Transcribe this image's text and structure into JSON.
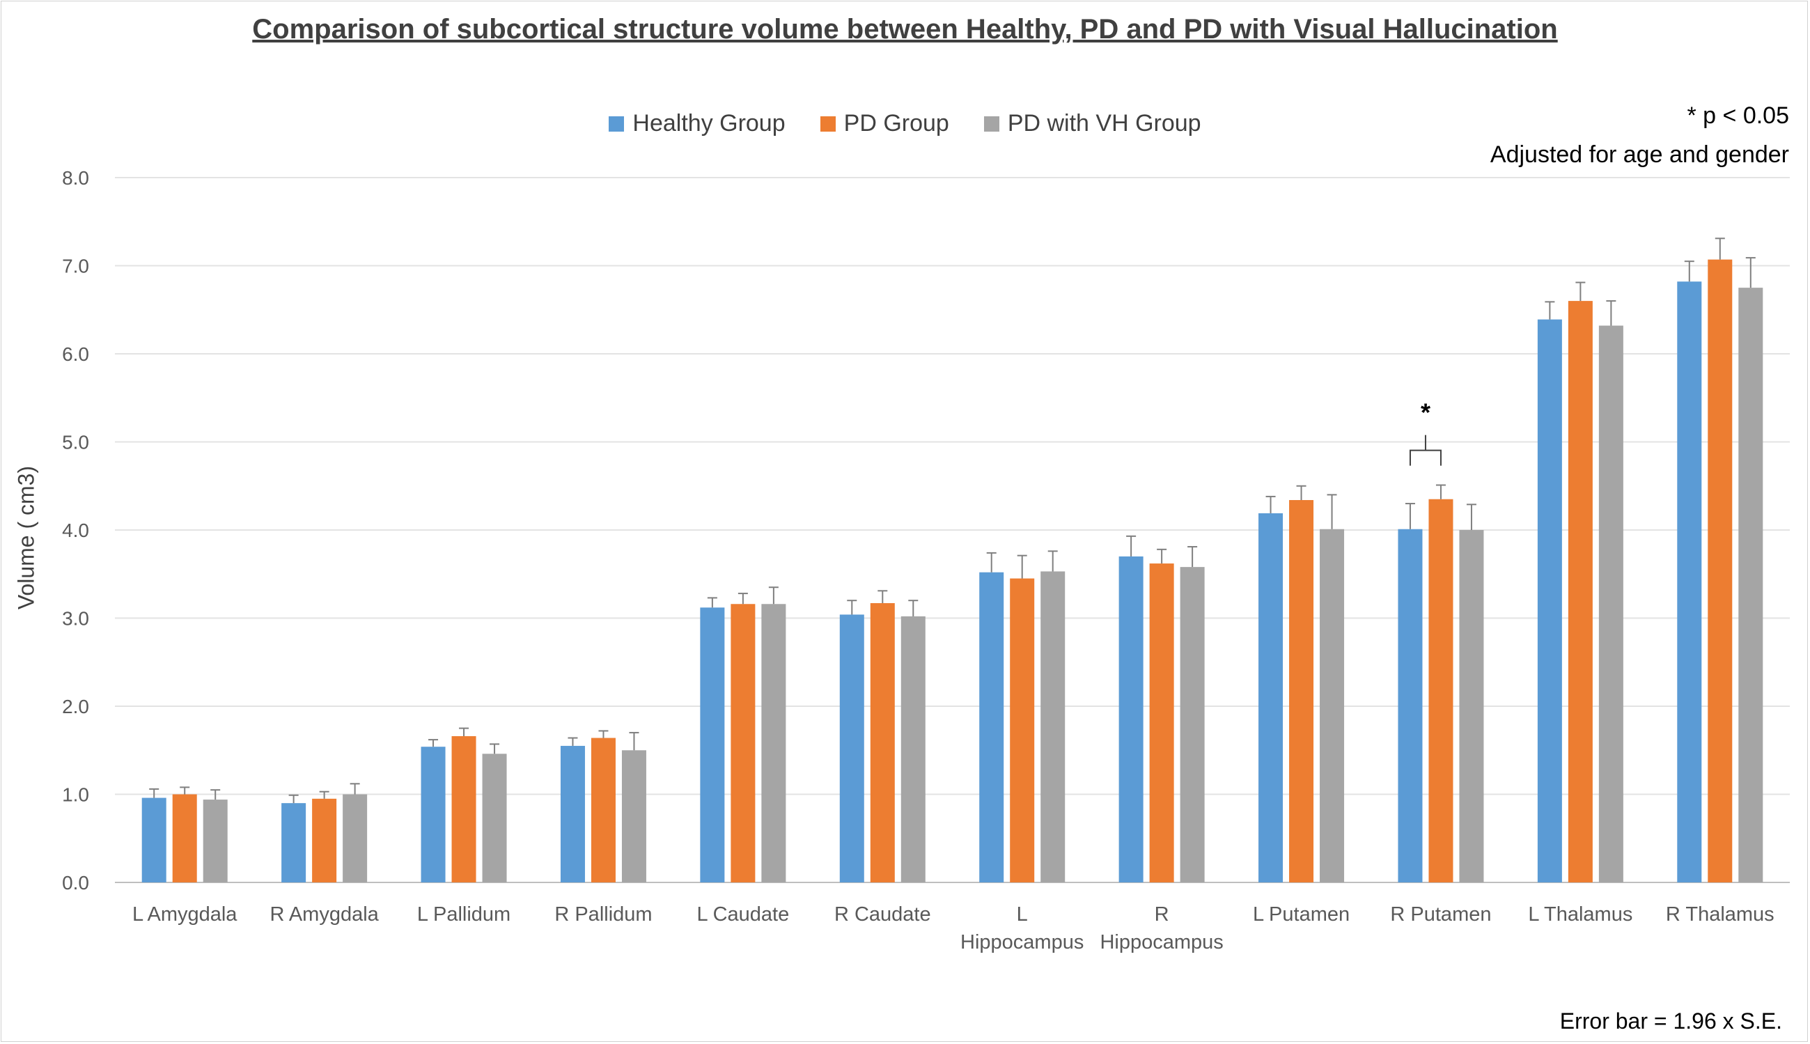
{
  "chart_data": {
    "type": "bar",
    "title": "Comparison of subcortical structure volume between Healthy, PD and PD with Visual Hallucination",
    "ylabel": "Volume ( cm3)",
    "xlabel": "",
    "ylim": [
      0,
      8
    ],
    "yticks": [
      "0.0",
      "1.0",
      "2.0",
      "3.0",
      "4.0",
      "5.0",
      "6.0",
      "7.0",
      "8.0"
    ],
    "grid": true,
    "legend_position": "top-center",
    "categories": [
      [
        "L Amygdala"
      ],
      [
        "R Amygdala"
      ],
      [
        "L Pallidum"
      ],
      [
        "R Pallidum"
      ],
      [
        "L Caudate"
      ],
      [
        "R Caudate"
      ],
      [
        "L",
        "Hippocampus"
      ],
      [
        "R",
        "Hippocampus"
      ],
      [
        "L Putamen"
      ],
      [
        "R Putamen"
      ],
      [
        "L Thalamus"
      ],
      [
        "R Thalamus"
      ]
    ],
    "series": [
      {
        "name": "Healthy Group",
        "color": "#5b9bd5",
        "values": [
          0.96,
          0.9,
          1.54,
          1.55,
          3.12,
          3.04,
          3.52,
          3.7,
          4.19,
          4.01,
          6.39,
          6.82
        ],
        "errors": [
          0.1,
          0.09,
          0.08,
          0.09,
          0.11,
          0.16,
          0.22,
          0.23,
          0.19,
          0.29,
          0.2,
          0.23
        ]
      },
      {
        "name": "PD Group",
        "color": "#ed7d31",
        "values": [
          1.0,
          0.95,
          1.66,
          1.64,
          3.16,
          3.17,
          3.45,
          3.62,
          4.34,
          4.35,
          6.6,
          7.07
        ],
        "errors": [
          0.08,
          0.08,
          0.09,
          0.08,
          0.12,
          0.14,
          0.26,
          0.16,
          0.16,
          0.16,
          0.21,
          0.24
        ]
      },
      {
        "name": "PD with VH Group",
        "color": "#a5a5a5",
        "values": [
          0.94,
          1.0,
          1.46,
          1.5,
          3.16,
          3.02,
          3.53,
          3.58,
          4.01,
          4.0,
          6.32,
          6.75
        ],
        "errors": [
          0.11,
          0.12,
          0.11,
          0.2,
          0.19,
          0.18,
          0.23,
          0.23,
          0.39,
          0.29,
          0.28,
          0.34
        ]
      }
    ],
    "significance": {
      "category_index": 9,
      "between": [
        0,
        1
      ],
      "label": "*"
    }
  },
  "annotations": {
    "p_note": "* p < 0.05",
    "adjust_note": "Adjusted for age and gender",
    "error_note": "Error bar = 1.96 x S.E."
  }
}
